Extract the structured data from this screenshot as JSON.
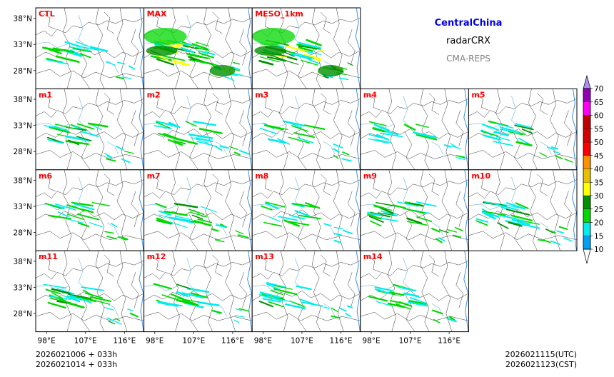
{
  "header": {
    "region": "CentralChina",
    "variable": "radarCRX",
    "system": "CMA-REPS",
    "region_color": "#0000ee",
    "variable_color": "#000000",
    "system_color": "#808080"
  },
  "panels": [
    {
      "label": "CTL",
      "row": 0,
      "col": 0,
      "intensity": 0.9
    },
    {
      "label": "MAX",
      "row": 0,
      "col": 1,
      "intensity": 2.0
    },
    {
      "label": "MESO_1km",
      "row": 0,
      "col": 2,
      "intensity": 1.8
    },
    {
      "label": "m1",
      "row": 1,
      "col": 0,
      "intensity": 1.0
    },
    {
      "label": "m2",
      "row": 1,
      "col": 1,
      "intensity": 0.9
    },
    {
      "label": "m3",
      "row": 1,
      "col": 2,
      "intensity": 0.8
    },
    {
      "label": "m4",
      "row": 1,
      "col": 3,
      "intensity": 0.8
    },
    {
      "label": "m5",
      "row": 1,
      "col": 4,
      "intensity": 1.0
    },
    {
      "label": "m6",
      "row": 2,
      "col": 0,
      "intensity": 0.9
    },
    {
      "label": "m7",
      "row": 2,
      "col": 1,
      "intensity": 1.0
    },
    {
      "label": "m8",
      "row": 2,
      "col": 2,
      "intensity": 0.8
    },
    {
      "label": "m9",
      "row": 2,
      "col": 3,
      "intensity": 1.2
    },
    {
      "label": "m10",
      "row": 2,
      "col": 4,
      "intensity": 1.3
    },
    {
      "label": "m11",
      "row": 3,
      "col": 0,
      "intensity": 1.2
    },
    {
      "label": "m12",
      "row": 3,
      "col": 1,
      "intensity": 1.0
    },
    {
      "label": "m13",
      "row": 3,
      "col": 2,
      "intensity": 1.0
    },
    {
      "label": "m14",
      "row": 3,
      "col": 3,
      "intensity": 0.9
    }
  ],
  "panel_label_color": "#ff0000",
  "axes": {
    "lat_ticks": [
      "38°N",
      "33°N",
      "28°N"
    ],
    "lon_ticks": [
      "98°E",
      "107°E",
      "116°E"
    ],
    "lat_values": [
      38,
      33,
      28
    ],
    "lon_values": [
      98,
      107,
      116
    ],
    "lat_range": [
      24.5,
      40
    ],
    "lon_range": [
      95.5,
      120.5
    ]
  },
  "colorbar": {
    "levels": [
      10,
      15,
      20,
      25,
      30,
      35,
      40,
      45,
      50,
      55,
      60,
      65,
      70
    ],
    "colors": [
      "#01a0f6",
      "#00ecec",
      "#00d800",
      "#019000",
      "#ffff00",
      "#e7c000",
      "#ff9000",
      "#ff0000",
      "#d60000",
      "#c00000",
      "#ff00f0",
      "#9600b4",
      "#ad90f0"
    ],
    "under_color": "#ffffff"
  },
  "footer": {
    "init_line1": "2026021006  +  033h",
    "init_line2": "2026021014  +  033h",
    "valid_utc": "2026021115(UTC)",
    "valid_cst": "2026021123(CST)"
  }
}
